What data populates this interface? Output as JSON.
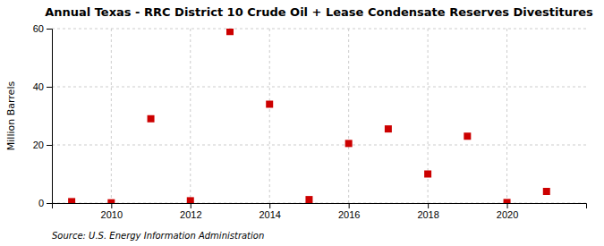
{
  "chart_data": {
    "type": "scatter",
    "title": "Annual Texas - RRC District 10 Crude Oil + Lease Condensate Reserves Divestitures",
    "ylabel": "Million Barrels",
    "source": "Source: U.S. Energy Information Administration",
    "x": [
      2009,
      2010,
      2011,
      2012,
      2013,
      2014,
      2015,
      2016,
      2017,
      2018,
      2019,
      2020,
      2021
    ],
    "values": [
      0.5,
      0.1,
      29.0,
      0.8,
      59.0,
      34.0,
      1.2,
      20.5,
      25.5,
      10.0,
      23.0,
      0.2,
      4.0
    ],
    "color": "#cc0000",
    "marker": "square",
    "xlim": [
      2008.5,
      2022.0
    ],
    "xticks": [
      2010,
      2012,
      2014,
      2016,
      2018,
      2020
    ],
    "ylim": [
      0,
      60
    ],
    "yticks": [
      0,
      20,
      40,
      60
    ],
    "grid": true
  }
}
